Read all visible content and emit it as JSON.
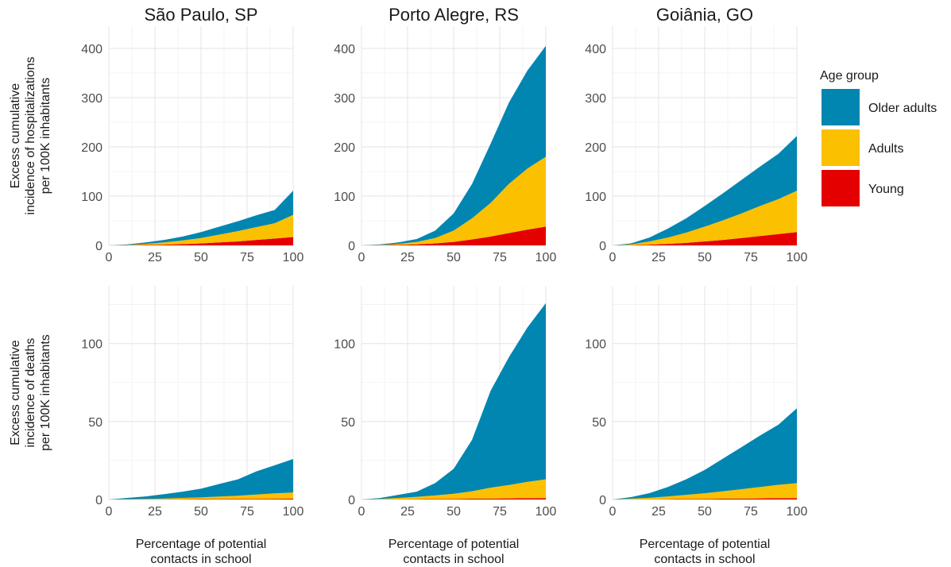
{
  "legend": {
    "title": "Age group",
    "items": [
      {
        "label": "Older adults",
        "color": "#0086B0"
      },
      {
        "label": "Adults",
        "color": "#FBC000"
      },
      {
        "label": "Young",
        "color": "#E50000"
      }
    ]
  },
  "y_titles": [
    [
      "Excess cumulative",
      "incidence of hospitalizations",
      "per 100K inhabitants"
    ],
    [
      "Excess cumulative",
      "incidence of deaths",
      "per 100K inhabitants"
    ]
  ],
  "x_title": [
    "Percentage of potential",
    "contacts in school"
  ],
  "chart_data": [
    {
      "type": "area",
      "stacked": true,
      "title": "São Paulo, SP",
      "x": [
        0,
        10,
        20,
        30,
        40,
        50,
        60,
        70,
        80,
        90,
        100
      ],
      "xticks": [
        0,
        25,
        50,
        75,
        100
      ],
      "ylim": [
        0,
        445
      ],
      "yticks": [
        0,
        100,
        200,
        300,
        400
      ],
      "series": [
        {
          "name": "Young",
          "values": [
            0,
            0.3,
            0.8,
            1.5,
            2.5,
            4,
            6,
            8,
            11,
            14,
            17
          ]
        },
        {
          "name": "Adults",
          "values": [
            0,
            0.7,
            2.2,
            4.5,
            7.5,
            11,
            16,
            21,
            26,
            31,
            45
          ]
        },
        {
          "name": "Older adults",
          "values": [
            0,
            1,
            3,
            5,
            8,
            12,
            16,
            20,
            24,
            27,
            49
          ]
        }
      ]
    },
    {
      "type": "area",
      "stacked": true,
      "title": "Porto Alegre, RS",
      "x": [
        0,
        10,
        20,
        30,
        40,
        50,
        60,
        70,
        80,
        90,
        100
      ],
      "xticks": [
        0,
        25,
        50,
        75,
        100
      ],
      "ylim": [
        0,
        445
      ],
      "yticks": [
        0,
        100,
        200,
        300,
        400
      ],
      "series": [
        {
          "name": "Young",
          "values": [
            0,
            0.3,
            1,
            2,
            4,
            7,
            12,
            18,
            25,
            32,
            38
          ]
        },
        {
          "name": "Adults",
          "values": [
            0,
            0.7,
            2,
            5,
            11,
            23,
            43,
            68,
            100,
            124,
            142
          ]
        },
        {
          "name": "Older adults",
          "values": [
            0,
            1,
            3,
            6,
            15,
            35,
            70,
            120,
            165,
            199,
            225
          ]
        }
      ]
    },
    {
      "type": "area",
      "stacked": true,
      "title": "Goiânia, GO",
      "x": [
        0,
        10,
        20,
        30,
        40,
        50,
        60,
        70,
        80,
        90,
        100
      ],
      "xticks": [
        0,
        25,
        50,
        75,
        100
      ],
      "ylim": [
        0,
        445
      ],
      "yticks": [
        0,
        100,
        200,
        300,
        400
      ],
      "series": [
        {
          "name": "Young",
          "values": [
            0,
            0.5,
            1.5,
            3,
            5,
            8,
            11,
            15,
            19,
            23,
            27
          ]
        },
        {
          "name": "Adults",
          "values": [
            0,
            1.5,
            6.5,
            13,
            21,
            30,
            40,
            50,
            61,
            71,
            84
          ]
        },
        {
          "name": "Older adults",
          "values": [
            0,
            2,
            8,
            18,
            29,
            42,
            55,
            68,
            80,
            92,
            111
          ]
        }
      ]
    },
    {
      "type": "area",
      "stacked": true,
      "x": [
        0,
        10,
        20,
        30,
        40,
        50,
        60,
        70,
        80,
        90,
        100
      ],
      "xticks": [
        0,
        25,
        50,
        75,
        100
      ],
      "ylim": [
        0,
        137
      ],
      "yticks": [
        0,
        50,
        100
      ],
      "series": [
        {
          "name": "Young",
          "values": [
            0,
            0.05,
            0.1,
            0.15,
            0.2,
            0.25,
            0.3,
            0.35,
            0.4,
            0.45,
            0.5
          ]
        },
        {
          "name": "Adults",
          "values": [
            0,
            0.15,
            0.3,
            0.5,
            0.8,
            1.1,
            1.6,
            2.1,
            2.8,
            3.5,
            4
          ]
        },
        {
          "name": "Older adults",
          "values": [
            0,
            0.8,
            1.6,
            2.8,
            4,
            5.6,
            8.1,
            10.5,
            14.8,
            18,
            21.5
          ]
        }
      ]
    },
    {
      "type": "area",
      "stacked": true,
      "x": [
        0,
        10,
        20,
        30,
        40,
        50,
        60,
        70,
        80,
        90,
        100
      ],
      "xticks": [
        0,
        25,
        50,
        75,
        100
      ],
      "ylim": [
        0,
        137
      ],
      "yticks": [
        0,
        50,
        100
      ],
      "series": [
        {
          "name": "Young",
          "values": [
            0,
            0.05,
            0.1,
            0.2,
            0.3,
            0.4,
            0.5,
            0.6,
            0.7,
            0.8,
            0.9
          ]
        },
        {
          "name": "Adults",
          "values": [
            0,
            0.3,
            0.9,
            1.5,
            2.3,
            3.3,
            4.8,
            7,
            8.6,
            10.5,
            12
          ]
        },
        {
          "name": "Older adults",
          "values": [
            0,
            0.6,
            2,
            3.3,
            8,
            16,
            33,
            62,
            82,
            99,
            113
          ]
        }
      ]
    },
    {
      "type": "area",
      "stacked": true,
      "x": [
        0,
        10,
        20,
        30,
        40,
        50,
        60,
        70,
        80,
        90,
        100
      ],
      "xticks": [
        0,
        25,
        50,
        75,
        100
      ],
      "ylim": [
        0,
        137
      ],
      "yticks": [
        0,
        50,
        100
      ],
      "series": [
        {
          "name": "Young",
          "values": [
            0,
            0.05,
            0.1,
            0.2,
            0.3,
            0.4,
            0.5,
            0.6,
            0.7,
            0.8,
            0.9
          ]
        },
        {
          "name": "Adults",
          "values": [
            0,
            0.5,
            1,
            1.8,
            2.7,
            3.6,
            4.8,
            6,
            7.3,
            8.6,
            9.6
          ]
        },
        {
          "name": "Older adults",
          "values": [
            0,
            1,
            3,
            6,
            10,
            15,
            21,
            27,
            33,
            38.6,
            48
          ]
        }
      ]
    }
  ]
}
